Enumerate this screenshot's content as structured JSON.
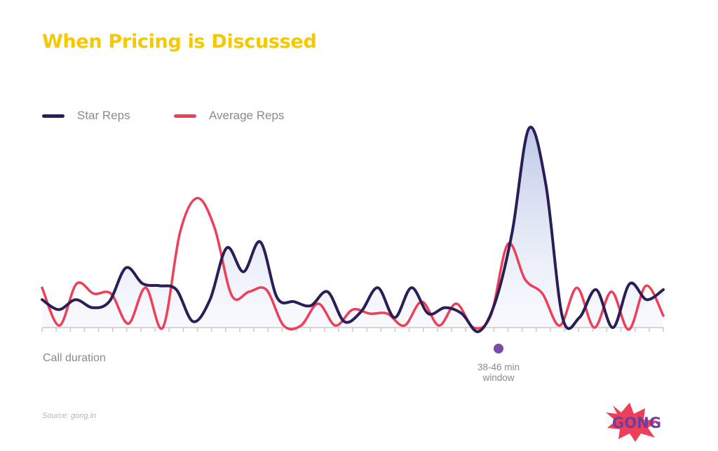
{
  "chart_data": {
    "type": "line",
    "title": "When Pricing is Discussed",
    "xlabel": "Call duration",
    "ylabel": "",
    "legend": "top-left",
    "grid": false,
    "x_ticks": 45,
    "series": [
      {
        "name": "Star Reps",
        "color": "#2a1e56",
        "filled": true,
        "values": [
          14,
          9,
          14,
          10,
          13,
          30,
          22,
          21,
          19,
          3,
          14,
          40,
          28,
          43,
          15,
          13,
          11,
          18,
          3,
          8,
          20,
          5,
          20,
          7,
          10,
          7,
          -2,
          13,
          48,
          100,
          72,
          5,
          5,
          19,
          0,
          22,
          14,
          19
        ]
      },
      {
        "name": "Average Reps",
        "color": "#ef3e57",
        "filled": false,
        "values": [
          20,
          1,
          22,
          17,
          17,
          2,
          20,
          0,
          48,
          65,
          50,
          16,
          18,
          19,
          1,
          1,
          12,
          1,
          9,
          7,
          7,
          1,
          13,
          1,
          12,
          0,
          6,
          42,
          24,
          17,
          1,
          20,
          0,
          18,
          -1,
          21,
          6
        ]
      }
    ],
    "annotation": {
      "label_line1": "38-46 min",
      "label_line2": "window",
      "color": "#7a4ba8"
    }
  },
  "source": "Source: gong.in",
  "logo": {
    "text": "GONG",
    "burst_color": "#ef3e57",
    "text_color": "#6b3fa0"
  }
}
